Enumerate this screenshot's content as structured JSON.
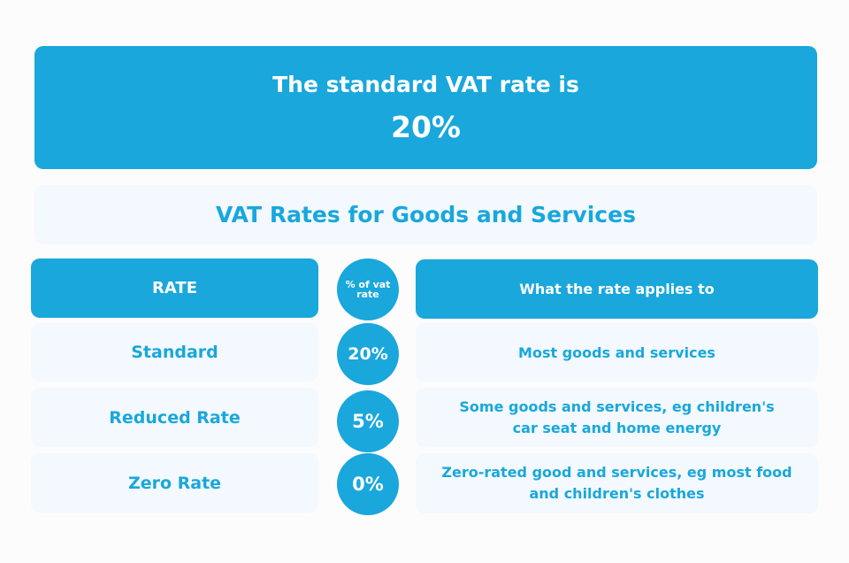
{
  "hero": {
    "title": "The standard VAT rate is",
    "value": "20%"
  },
  "subtitle": "VAT Rates for Goods and Services",
  "table": {
    "headers": {
      "rate": "RATE",
      "percent": "% of vat rate",
      "applies": "What the rate applies to"
    },
    "rows": [
      {
        "rate": "Standard",
        "percent": "20%",
        "applies": "Most goods and services"
      },
      {
        "rate": "Reduced Rate",
        "percent": "5%",
        "applies": "Some goods and services, eg children's car seat and home energy"
      },
      {
        "rate": "Zero Rate",
        "percent": "0%",
        "applies": "Zero-rated good and services, eg most food and children's clothes"
      }
    ]
  },
  "colors": {
    "accent": "#19a7dc",
    "panel": "#f3f9fe"
  }
}
